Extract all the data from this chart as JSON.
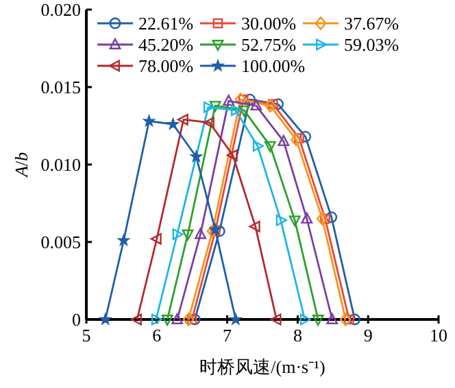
{
  "chart_data": {
    "type": "line",
    "xlabel": "时桥风速/(m·s⁻¹)",
    "ylabel": "*A*/*b*",
    "xlim": [
      5,
      10
    ],
    "xticks": [
      5,
      6,
      7,
      8,
      9,
      10
    ],
    "ylim": [
      0,
      0.02
    ],
    "yticks": [
      0,
      0.005,
      {
        "value": 0.01,
        "label": "0.010"
      },
      0.015,
      {
        "value": 0.02,
        "label": "0.020"
      }
    ],
    "legend": "top left",
    "grid": false,
    "series": [
      {
        "name": "22.61%",
        "color": "#1f5fa8",
        "marker": "circle",
        "x": [
          6.54,
          6.89,
          7.32,
          7.72,
          8.11,
          8.48,
          8.81
        ],
        "values": [
          0,
          0.0057,
          0.0142,
          0.0139,
          0.0118,
          0.0066,
          0
        ]
      },
      {
        "name": "30.00%",
        "color": "#e8473a",
        "marker": "square",
        "x": [
          6.5,
          6.83,
          7.23,
          7.65,
          8.02,
          8.39,
          8.73
        ],
        "values": [
          0,
          0.0057,
          0.0142,
          0.0139,
          0.0117,
          0.0065,
          0
        ]
      },
      {
        "name": "37.67%",
        "color": "#f7941d",
        "marker": "diamond",
        "x": [
          6.45,
          6.79,
          7.19,
          7.61,
          7.98,
          8.35,
          8.68
        ],
        "values": [
          0,
          0.0057,
          0.0142,
          0.0138,
          0.0116,
          0.0065,
          0
        ]
      },
      {
        "name": "45.20%",
        "color": "#7b3fa0",
        "marker": "triangle",
        "x": [
          6.29,
          6.62,
          7.02,
          7.41,
          7.8,
          8.13,
          8.49
        ],
        "values": [
          0,
          0.0055,
          0.0141,
          0.0138,
          0.0115,
          0.0065,
          0
        ]
      },
      {
        "name": "52.75%",
        "color": "#2ca02c",
        "marker": "triangle-down",
        "x": [
          6.15,
          6.44,
          6.83,
          7.24,
          7.61,
          7.96,
          8.29
        ],
        "values": [
          0,
          0.0055,
          0.0138,
          0.0135,
          0.0112,
          0.0064,
          0
        ]
      },
      {
        "name": "59.03%",
        "color": "#1fb5e8",
        "marker": "triangle-right",
        "x": [
          5.99,
          6.29,
          6.73,
          7.12,
          7.43,
          7.76,
          8.1
        ],
        "values": [
          0,
          0.0055,
          0.0137,
          0.0135,
          0.0112,
          0.0064,
          0
        ]
      },
      {
        "name": "78.00%",
        "color": "#b22a2e",
        "marker": "triangle-left",
        "x": [
          5.72,
          6.0,
          6.38,
          6.75,
          7.08,
          7.4,
          7.7
        ],
        "values": [
          0,
          0.0052,
          0.0129,
          0.0127,
          0.0106,
          0.006,
          0
        ]
      },
      {
        "name": "100.00%",
        "color": "#1f5fa8",
        "marker": "star",
        "x": [
          5.27,
          5.53,
          5.89,
          6.23,
          6.56,
          6.83,
          7.12
        ],
        "values": [
          0,
          0.0051,
          0.0128,
          0.0126,
          0.0105,
          0.0058,
          0
        ]
      }
    ]
  }
}
